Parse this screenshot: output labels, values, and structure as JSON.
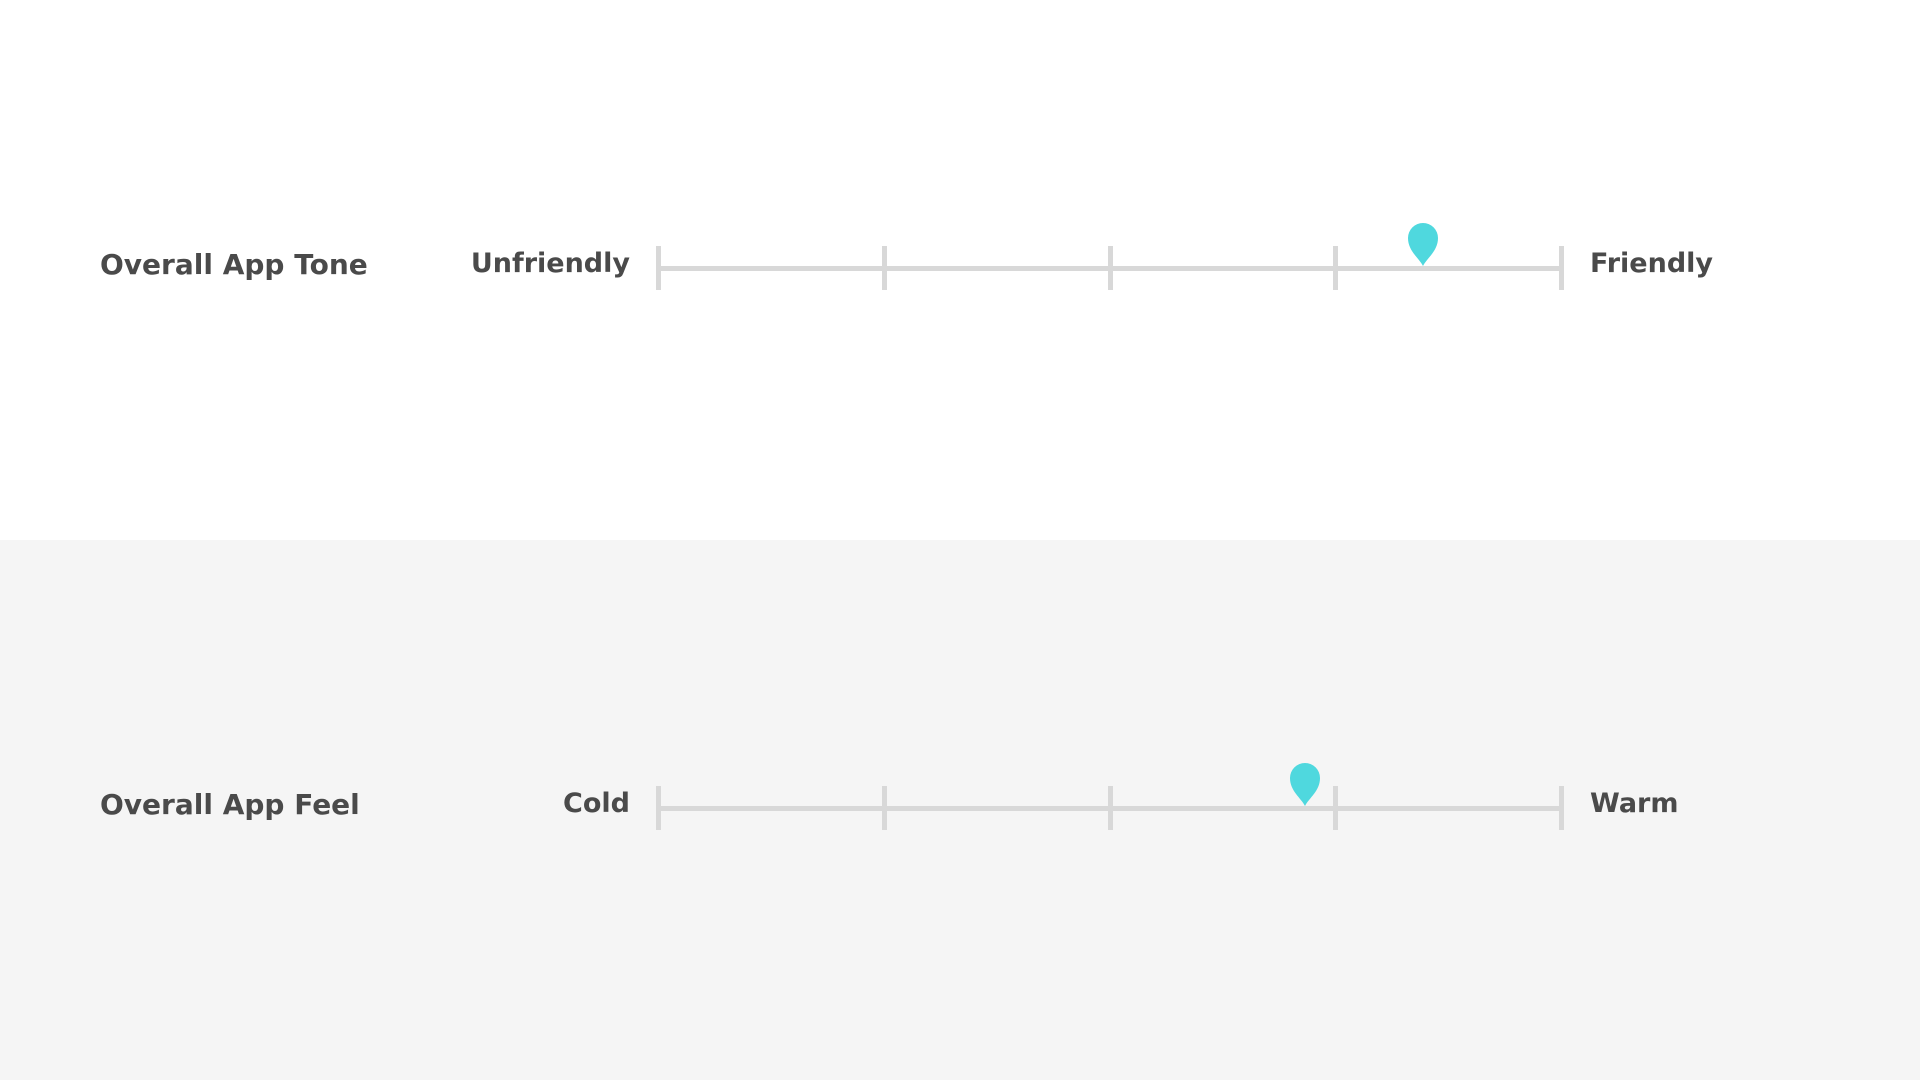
{
  "accent_color": "#4fd8de",
  "track_color": "#d8d8d8",
  "text_color": "#4a4a4a",
  "rows": [
    {
      "title": "Overall App Tone",
      "left_label": "Unfriendly",
      "right_label": "Friendly",
      "value_fraction": 0.847
    },
    {
      "title": "Overall App Feel",
      "left_label": "Cold",
      "right_label": "Warm",
      "value_fraction": 0.717
    }
  ],
  "tick_count": 5
}
